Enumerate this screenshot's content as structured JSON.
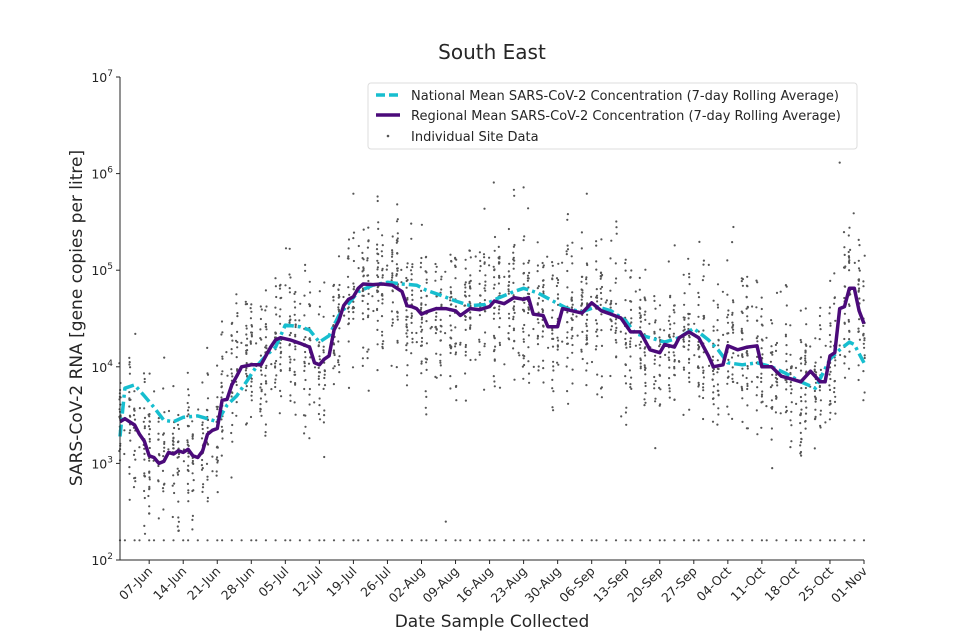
{
  "chart_data": {
    "type": "line",
    "title": "South East",
    "xlabel": "Date Sample Collected",
    "ylabel": "SARS-CoV-2 RNA [gene copies per litre]",
    "yscale": "log",
    "ylim": [
      100,
      10000000
    ],
    "y_ticks": [
      {
        "value": 100,
        "base": "10",
        "exp": "2"
      },
      {
        "value": 1000,
        "base": "10",
        "exp": "3"
      },
      {
        "value": 10000,
        "base": "10",
        "exp": "4"
      },
      {
        "value": 100000,
        "base": "10",
        "exp": "5"
      },
      {
        "value": 1000000,
        "base": "10",
        "exp": "6"
      },
      {
        "value": 10000000,
        "base": "10",
        "exp": "7"
      }
    ],
    "xlim": [
      "2021-06-01",
      "2021-11-01"
    ],
    "x_ticks": [
      {
        "date": "2021-06-07",
        "label": "07-Jun"
      },
      {
        "date": "2021-06-14",
        "label": "14-Jun"
      },
      {
        "date": "2021-06-21",
        "label": "21-Jun"
      },
      {
        "date": "2021-06-28",
        "label": "28-Jun"
      },
      {
        "date": "2021-07-05",
        "label": "05-Jul"
      },
      {
        "date": "2021-07-12",
        "label": "12-Jul"
      },
      {
        "date": "2021-07-19",
        "label": "19-Jul"
      },
      {
        "date": "2021-07-26",
        "label": "26-Jul"
      },
      {
        "date": "2021-08-02",
        "label": "02-Aug"
      },
      {
        "date": "2021-08-09",
        "label": "09-Aug"
      },
      {
        "date": "2021-08-16",
        "label": "16-Aug"
      },
      {
        "date": "2021-08-23",
        "label": "23-Aug"
      },
      {
        "date": "2021-08-30",
        "label": "30-Aug"
      },
      {
        "date": "2021-09-06",
        "label": "06-Sep"
      },
      {
        "date": "2021-09-13",
        "label": "13-Sep"
      },
      {
        "date": "2021-09-20",
        "label": "20-Sep"
      },
      {
        "date": "2021-09-27",
        "label": "27-Sep"
      },
      {
        "date": "2021-10-04",
        "label": "04-Oct"
      },
      {
        "date": "2021-10-11",
        "label": "11-Oct"
      },
      {
        "date": "2021-10-18",
        "label": "18-Oct"
      },
      {
        "date": "2021-10-25",
        "label": "25-Oct"
      },
      {
        "date": "2021-11-01",
        "label": "01-Nov"
      }
    ],
    "grid": false,
    "legend_position": "top-right",
    "series": [
      {
        "name": "National Mean SARS-CoV-2 Concentration (7-day Rolling Average)",
        "color": "#17becf",
        "style": "dashed",
        "points": [
          [
            "2021-06-01",
            1900
          ],
          [
            "2021-06-02",
            6000
          ],
          [
            "2021-06-04",
            6500
          ],
          [
            "2021-06-06",
            5000
          ],
          [
            "2021-06-08",
            3800
          ],
          [
            "2021-06-10",
            2800
          ],
          [
            "2021-06-12",
            2700
          ],
          [
            "2021-06-14",
            3000
          ],
          [
            "2021-06-17",
            3100
          ],
          [
            "2021-06-19",
            2900
          ],
          [
            "2021-06-21",
            2700
          ],
          [
            "2021-06-23",
            4000
          ],
          [
            "2021-06-25",
            5000
          ],
          [
            "2021-06-27",
            7000
          ],
          [
            "2021-06-29",
            10000
          ],
          [
            "2021-07-01",
            13000
          ],
          [
            "2021-07-03",
            16000
          ],
          [
            "2021-07-05",
            27000
          ],
          [
            "2021-07-08",
            26000
          ],
          [
            "2021-07-10",
            24000
          ],
          [
            "2021-07-12",
            18000
          ],
          [
            "2021-07-14",
            21000
          ],
          [
            "2021-07-16",
            34000
          ],
          [
            "2021-07-18",
            45000
          ],
          [
            "2021-07-20",
            60000
          ],
          [
            "2021-07-23",
            70000
          ],
          [
            "2021-07-26",
            75000
          ],
          [
            "2021-07-29",
            72000
          ],
          [
            "2021-08-01",
            70000
          ],
          [
            "2021-08-03",
            62000
          ],
          [
            "2021-08-06",
            55000
          ],
          [
            "2021-08-09",
            48000
          ],
          [
            "2021-08-12",
            43000
          ],
          [
            "2021-08-15",
            44000
          ],
          [
            "2021-08-18",
            52000
          ],
          [
            "2021-08-21",
            60000
          ],
          [
            "2021-08-23",
            65000
          ],
          [
            "2021-08-26",
            58000
          ],
          [
            "2021-08-29",
            48000
          ],
          [
            "2021-09-01",
            40000
          ],
          [
            "2021-09-04",
            37000
          ],
          [
            "2021-09-07",
            42000
          ],
          [
            "2021-09-10",
            38000
          ],
          [
            "2021-09-13",
            30000
          ],
          [
            "2021-09-15",
            22000
          ],
          [
            "2021-09-18",
            20000
          ],
          [
            "2021-09-21",
            18000
          ],
          [
            "2021-09-24",
            20000
          ],
          [
            "2021-09-27",
            25000
          ],
          [
            "2021-09-30",
            19000
          ],
          [
            "2021-10-02",
            15000
          ],
          [
            "2021-10-04",
            11000
          ],
          [
            "2021-10-07",
            10500
          ],
          [
            "2021-10-10",
            11000
          ],
          [
            "2021-10-13",
            10000
          ],
          [
            "2021-10-16",
            8500
          ],
          [
            "2021-10-19",
            7000
          ],
          [
            "2021-10-22",
            6000
          ],
          [
            "2021-10-25",
            12000
          ],
          [
            "2021-10-27",
            15000
          ],
          [
            "2021-10-29",
            18000
          ],
          [
            "2021-10-30",
            17000
          ],
          [
            "2021-11-01",
            11000
          ]
        ]
      },
      {
        "name": "Regional Mean SARS-CoV-2 Concentration (7-day Rolling Average)",
        "color": "#4b0a7a",
        "style": "solid",
        "points": [
          [
            "2021-06-01",
            2700
          ],
          [
            "2021-06-02",
            2900
          ],
          [
            "2021-06-04",
            2500
          ],
          [
            "2021-06-05",
            2000
          ],
          [
            "2021-06-06",
            1700
          ],
          [
            "2021-06-07",
            1200
          ],
          [
            "2021-06-08",
            1150
          ],
          [
            "2021-06-09",
            1000
          ],
          [
            "2021-06-10",
            1050
          ],
          [
            "2021-06-11",
            1300
          ],
          [
            "2021-06-12",
            1250
          ],
          [
            "2021-06-13",
            1350
          ],
          [
            "2021-06-14",
            1300
          ],
          [
            "2021-06-15",
            1400
          ],
          [
            "2021-06-16",
            1200
          ],
          [
            "2021-06-17",
            1150
          ],
          [
            "2021-06-18",
            1350
          ],
          [
            "2021-06-19",
            2000
          ],
          [
            "2021-06-20",
            2200
          ],
          [
            "2021-06-21",
            2300
          ],
          [
            "2021-06-22",
            4500
          ],
          [
            "2021-06-23",
            4600
          ],
          [
            "2021-06-24",
            6500
          ],
          [
            "2021-06-25",
            8000
          ],
          [
            "2021-06-26",
            10000
          ],
          [
            "2021-06-28",
            10500
          ],
          [
            "2021-06-30",
            10500
          ],
          [
            "2021-07-01",
            13000
          ],
          [
            "2021-07-02",
            16000
          ],
          [
            "2021-07-03",
            19000
          ],
          [
            "2021-07-04",
            20000
          ],
          [
            "2021-07-06",
            19000
          ],
          [
            "2021-07-08",
            17500
          ],
          [
            "2021-07-10",
            16000
          ],
          [
            "2021-07-11",
            11000
          ],
          [
            "2021-07-12",
            10500
          ],
          [
            "2021-07-13",
            12000
          ],
          [
            "2021-07-14",
            13000
          ],
          [
            "2021-07-15",
            24000
          ],
          [
            "2021-07-16",
            30000
          ],
          [
            "2021-07-17",
            43000
          ],
          [
            "2021-07-18",
            50000
          ],
          [
            "2021-07-19",
            53000
          ],
          [
            "2021-07-20",
            65000
          ],
          [
            "2021-07-21",
            72000
          ],
          [
            "2021-07-23",
            71000
          ],
          [
            "2021-07-25",
            72000
          ],
          [
            "2021-07-27",
            70000
          ],
          [
            "2021-07-29",
            60000
          ],
          [
            "2021-07-30",
            43000
          ],
          [
            "2021-07-31",
            42000
          ],
          [
            "2021-08-01",
            40000
          ],
          [
            "2021-08-02",
            35000
          ],
          [
            "2021-08-03",
            37000
          ],
          [
            "2021-08-05",
            40000
          ],
          [
            "2021-08-07",
            40000
          ],
          [
            "2021-08-09",
            38000
          ],
          [
            "2021-08-10",
            34000
          ],
          [
            "2021-08-12",
            40000
          ],
          [
            "2021-08-14",
            39000
          ],
          [
            "2021-08-16",
            42000
          ],
          [
            "2021-08-17",
            48000
          ],
          [
            "2021-08-19",
            45000
          ],
          [
            "2021-08-21",
            52000
          ],
          [
            "2021-08-23",
            50000
          ],
          [
            "2021-08-24",
            52000
          ],
          [
            "2021-08-25",
            35000
          ],
          [
            "2021-08-27",
            34000
          ],
          [
            "2021-08-28",
            26000
          ],
          [
            "2021-08-30",
            26000
          ],
          [
            "2021-08-31",
            40000
          ],
          [
            "2021-09-02",
            38000
          ],
          [
            "2021-09-04",
            36000
          ],
          [
            "2021-09-06",
            46000
          ],
          [
            "2021-09-08",
            38000
          ],
          [
            "2021-09-10",
            35000
          ],
          [
            "2021-09-12",
            32000
          ],
          [
            "2021-09-14",
            23000
          ],
          [
            "2021-09-16",
            23000
          ],
          [
            "2021-09-18",
            15000
          ],
          [
            "2021-09-20",
            14000
          ],
          [
            "2021-09-21",
            17000
          ],
          [
            "2021-09-23",
            16000
          ],
          [
            "2021-09-24",
            20000
          ],
          [
            "2021-09-26",
            23000
          ],
          [
            "2021-09-28",
            20000
          ],
          [
            "2021-09-30",
            13000
          ],
          [
            "2021-10-01",
            10000
          ],
          [
            "2021-10-03",
            10500
          ],
          [
            "2021-10-04",
            16500
          ],
          [
            "2021-10-06",
            15000
          ],
          [
            "2021-10-08",
            16000
          ],
          [
            "2021-10-10",
            16500
          ],
          [
            "2021-10-11",
            10000
          ],
          [
            "2021-10-13",
            10000
          ],
          [
            "2021-10-15",
            8000
          ],
          [
            "2021-10-17",
            7500
          ],
          [
            "2021-10-19",
            7000
          ],
          [
            "2021-10-21",
            9000
          ],
          [
            "2021-10-23",
            7000
          ],
          [
            "2021-10-24",
            7000
          ],
          [
            "2021-10-25",
            13000
          ],
          [
            "2021-10-26",
            14000
          ],
          [
            "2021-10-27",
            40000
          ],
          [
            "2021-10-28",
            42000
          ],
          [
            "2021-10-29",
            65000
          ],
          [
            "2021-10-30",
            65000
          ],
          [
            "2021-10-31",
            38000
          ],
          [
            "2021-11-01",
            28000
          ]
        ]
      },
      {
        "name": "Individual Site Data",
        "color": "#555555",
        "style": "scatter",
        "note_values": "approximate; detection floor points at 160",
        "floor_value": 160,
        "floor_dates": [
          "2021-06-01",
          "2021-06-02",
          "2021-06-04",
          "2021-06-05",
          "2021-06-07",
          "2021-06-08",
          "2021-06-10",
          "2021-06-12",
          "2021-06-14",
          "2021-06-15",
          "2021-06-17",
          "2021-06-19",
          "2021-06-21",
          "2021-06-22",
          "2021-06-24",
          "2021-06-26",
          "2021-06-28",
          "2021-06-29",
          "2021-07-01",
          "2021-07-03",
          "2021-07-05",
          "2021-07-06",
          "2021-07-08",
          "2021-07-10",
          "2021-07-12",
          "2021-07-13",
          "2021-07-15",
          "2021-07-17",
          "2021-07-19",
          "2021-07-20",
          "2021-07-22",
          "2021-07-24",
          "2021-07-26",
          "2021-07-27",
          "2021-07-29",
          "2021-07-31",
          "2021-08-02",
          "2021-08-03",
          "2021-08-05",
          "2021-08-07",
          "2021-08-09",
          "2021-08-10",
          "2021-08-12",
          "2021-08-14",
          "2021-08-16",
          "2021-08-17",
          "2021-08-19",
          "2021-08-21",
          "2021-08-23",
          "2021-08-24",
          "2021-08-26",
          "2021-08-28",
          "2021-08-30",
          "2021-08-31",
          "2021-09-02",
          "2021-09-04",
          "2021-09-06",
          "2021-09-07",
          "2021-09-09",
          "2021-09-11",
          "2021-09-13",
          "2021-09-14",
          "2021-09-16",
          "2021-09-18",
          "2021-09-20",
          "2021-09-21",
          "2021-09-23",
          "2021-09-25",
          "2021-09-27",
          "2021-09-28",
          "2021-09-30",
          "2021-10-02",
          "2021-10-04",
          "2021-10-05",
          "2021-10-07",
          "2021-10-09",
          "2021-10-11",
          "2021-10-12",
          "2021-10-14",
          "2021-10-16",
          "2021-10-18",
          "2021-10-19",
          "2021-10-21",
          "2021-10-23",
          "2021-10-25",
          "2021-10-26",
          "2021-10-28",
          "2021-10-30",
          "2021-11-01"
        ],
        "notable_points": [
          [
            "2021-07-19",
            620000
          ],
          [
            "2021-07-24",
            520000
          ],
          [
            "2021-07-28",
            480000
          ],
          [
            "2021-08-21",
            680000
          ],
          [
            "2021-08-23",
            720000
          ],
          [
            "2021-09-05",
            620000
          ],
          [
            "2021-10-27",
            1300000
          ],
          [
            "2021-06-13",
            200
          ],
          [
            "2021-08-07",
            250
          ]
        ]
      }
    ]
  }
}
